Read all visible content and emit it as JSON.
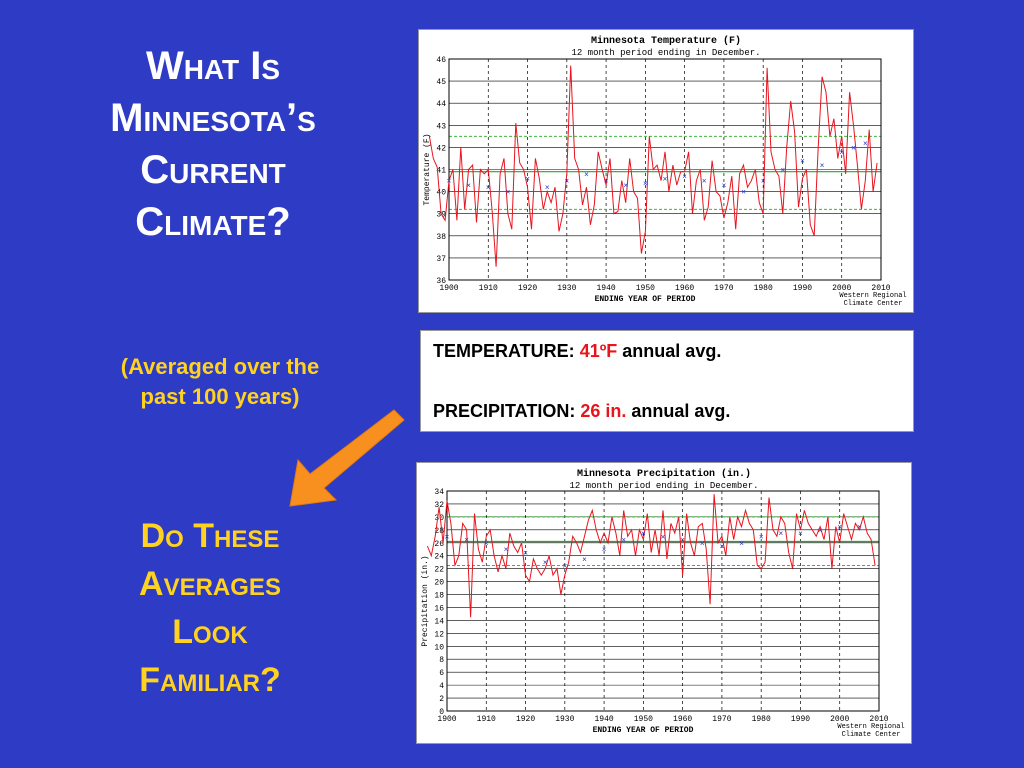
{
  "slide": {
    "title_lines": [
      "What Is",
      "Minnesota’s",
      "Current",
      "Climate?"
    ],
    "subtitle_lines": [
      "(Averaged over the",
      "past 100 years)"
    ],
    "question_lines": [
      "Do These",
      "Averages",
      "Look",
      "Familiar?"
    ],
    "arrow_icon": "orange-diagonal-arrow",
    "info": {
      "temp_label": "TEMPERATURE:",
      "temp_value": "41ºF",
      "temp_unit": "annual avg.",
      "precip_label": "PRECIPITATION:",
      "precip_value": "26 in.",
      "precip_unit": "annual avg."
    },
    "colors": {
      "background": "#2e3bc4",
      "accent_yellow": "#ffd21f",
      "value_red": "#e8141e",
      "arrow_orange": "#f7901e"
    }
  },
  "chart_data": [
    {
      "type": "line",
      "title": "Minnesota  Temperature (F)",
      "subtitle": "12 month period ending in December.",
      "xlabel": "ENDING YEAR OF PERIOD",
      "ylabel": "Temperature (F)",
      "credit_lines": [
        "Western Regional",
        "Climate Center"
      ],
      "xlim": [
        1900,
        2010
      ],
      "ylim": [
        36,
        46
      ],
      "xticks": [
        1900,
        1910,
        1920,
        1930,
        1940,
        1950,
        1960,
        1970,
        1980,
        1990,
        2000,
        2010
      ],
      "yticks": [
        36,
        37,
        38,
        39,
        40,
        41,
        42,
        43,
        44,
        45,
        46
      ],
      "grid": true,
      "reference_lines": {
        "mean": 40.9,
        "upper": 42.5,
        "lower": 39.2
      },
      "series": [
        {
          "style": "line",
          "x": [
            1895,
            1896,
            1897,
            1898,
            1899,
            1900,
            1901,
            1902,
            1903,
            1904,
            1905,
            1906,
            1907,
            1908,
            1909,
            1910,
            1911,
            1912,
            1913,
            1914,
            1915,
            1916,
            1917,
            1918,
            1919,
            1920,
            1921,
            1922,
            1923,
            1924,
            1925,
            1926,
            1927,
            1928,
            1929,
            1930,
            1931,
            1932,
            1933,
            1934,
            1935,
            1936,
            1937,
            1938,
            1939,
            1940,
            1941,
            1942,
            1943,
            1944,
            1945,
            1946,
            1947,
            1948,
            1949,
            1950,
            1951,
            1952,
            1953,
            1954,
            1955,
            1956,
            1957,
            1958,
            1959,
            1960,
            1961,
            1962,
            1963,
            1964,
            1965,
            1966,
            1967,
            1968,
            1969,
            1970,
            1971,
            1972,
            1973,
            1974,
            1975,
            1976,
            1977,
            1978,
            1979,
            1980,
            1981,
            1982,
            1983,
            1984,
            1985,
            1986,
            1987,
            1988,
            1989,
            1990,
            1991,
            1992,
            1993,
            1994,
            1995,
            1996,
            1997,
            1998,
            1999,
            2000,
            2001,
            2002,
            2003,
            2004,
            2005,
            2006,
            2007,
            2008,
            2009
          ],
          "y": [
            42.5,
            41.5,
            41.1,
            39.0,
            38.7,
            40.5,
            41.0,
            38.7,
            42.0,
            39.2,
            41.0,
            41.2,
            38.6,
            41.0,
            40.8,
            41.0,
            39.1,
            36.6,
            40.8,
            41.5,
            39.0,
            38.3,
            43.1,
            41.3,
            41.0,
            40.2,
            38.3,
            41.5,
            40.6,
            39.2,
            40.0,
            39.5,
            40.2,
            38.2,
            39.0,
            40.8,
            45.7,
            41.5,
            41.0,
            39.4,
            40.2,
            38.5,
            39.4,
            41.8,
            41.0,
            40.3,
            41.5,
            39.0,
            39.1,
            40.5,
            39.5,
            41.5,
            40.0,
            39.7,
            37.2,
            38.2,
            42.5,
            41.0,
            41.2,
            40.5,
            41.8,
            40.0,
            41.2,
            40.3,
            40.9,
            40.9,
            41.8,
            39.0,
            40.5,
            41.0,
            38.7,
            39.3,
            41.4,
            40.0,
            39.8,
            38.8,
            39.5,
            40.7,
            38.3,
            40.8,
            41.2,
            40.2,
            40.5,
            41.0,
            39.5,
            39.0,
            45.6,
            41.8,
            41.0,
            40.7,
            39.0,
            42.0,
            44.1,
            42.7,
            39.3,
            40.6,
            41.0,
            38.5,
            38.0,
            42.0,
            45.2,
            44.5,
            42.5,
            43.3,
            41.5,
            42.5,
            40.8,
            44.5,
            43.0,
            41.2,
            39.2,
            40.5,
            42.8,
            40.0,
            41.3
          ]
        },
        {
          "style": "markers",
          "x": [
            1900,
            1905,
            1910,
            1915,
            1920,
            1925,
            1930,
            1935,
            1940,
            1945,
            1950,
            1955,
            1960,
            1965,
            1970,
            1975,
            1980,
            1985,
            1990,
            1995,
            2000,
            2003,
            2006
          ],
          "y": [
            40.5,
            40.3,
            40.2,
            40.0,
            40.6,
            40.2,
            40.5,
            40.8,
            40.5,
            40.3,
            40.4,
            40.6,
            40.7,
            40.5,
            40.3,
            40.0,
            40.5,
            41.0,
            41.4,
            41.2,
            41.8,
            42.0,
            42.2
          ]
        }
      ]
    },
    {
      "type": "line",
      "title": "Minnesota  Precipitation (in.)",
      "subtitle": "12 month period ending in December.",
      "xlabel": "ENDING YEAR OF PERIOD",
      "ylabel": "Precipitation (in.)",
      "credit_lines": [
        "Western Regional",
        "Climate Center"
      ],
      "xlim": [
        1900,
        2010
      ],
      "ylim": [
        0,
        34
      ],
      "xticks": [
        1900,
        1910,
        1920,
        1930,
        1940,
        1950,
        1960,
        1970,
        1980,
        1990,
        2000,
        2010
      ],
      "yticks": [
        0,
        2,
        4,
        6,
        8,
        10,
        12,
        14,
        16,
        18,
        20,
        22,
        24,
        26,
        28,
        30,
        32,
        34
      ],
      "grid": true,
      "reference_lines": {
        "mean": 26.2,
        "upper": 30.0,
        "lower": 22.5
      },
      "series": [
        {
          "style": "line",
          "x": [
            1895,
            1896,
            1897,
            1898,
            1899,
            1900,
            1901,
            1902,
            1903,
            1904,
            1905,
            1906,
            1907,
            1908,
            1909,
            1910,
            1911,
            1912,
            1913,
            1914,
            1915,
            1916,
            1917,
            1918,
            1919,
            1920,
            1921,
            1922,
            1923,
            1924,
            1925,
            1926,
            1927,
            1928,
            1929,
            1930,
            1931,
            1932,
            1933,
            1934,
            1935,
            1936,
            1937,
            1938,
            1939,
            1940,
            1941,
            1942,
            1943,
            1944,
            1945,
            1946,
            1947,
            1948,
            1949,
            1950,
            1951,
            1952,
            1953,
            1954,
            1955,
            1956,
            1957,
            1958,
            1959,
            1960,
            1961,
            1962,
            1963,
            1964,
            1965,
            1966,
            1967,
            1968,
            1969,
            1970,
            1971,
            1972,
            1973,
            1974,
            1975,
            1976,
            1977,
            1978,
            1979,
            1980,
            1981,
            1982,
            1983,
            1984,
            1985,
            1986,
            1987,
            1988,
            1989,
            1990,
            1991,
            1992,
            1993,
            1994,
            1995,
            1996,
            1997,
            1998,
            1999,
            2000,
            2001,
            2002,
            2003,
            2004,
            2005,
            2006,
            2007,
            2008,
            2009
          ],
          "y": [
            25.5,
            24.0,
            27.0,
            31.5,
            26.0,
            32.5,
            29.0,
            22.5,
            24.0,
            29.0,
            28.0,
            14.5,
            30.5,
            25.0,
            23.0,
            27.0,
            28.0,
            24.0,
            21.5,
            24.0,
            22.0,
            27.5,
            25.5,
            24.5,
            26.0,
            21.0,
            20.0,
            23.5,
            22.0,
            21.0,
            22.0,
            24.0,
            21.0,
            22.0,
            18.0,
            21.0,
            23.0,
            27.0,
            26.0,
            24.5,
            27.0,
            29.5,
            31.0,
            28.0,
            26.0,
            27.5,
            26.0,
            30.0,
            27.5,
            24.0,
            31.0,
            27.0,
            28.0,
            24.0,
            28.0,
            26.5,
            30.5,
            24.5,
            28.0,
            24.0,
            31.0,
            23.5,
            29.0,
            27.5,
            30.0,
            21.0,
            30.5,
            26.0,
            24.0,
            28.5,
            29.0,
            25.0,
            16.5,
            33.5,
            26.0,
            27.0,
            24.0,
            30.0,
            26.5,
            30.0,
            28.5,
            31.0,
            29.0,
            28.0,
            22.5,
            22.0,
            23.0,
            33.0,
            28.0,
            27.0,
            30.0,
            29.0,
            24.5,
            22.0,
            30.5,
            28.0,
            31.0,
            29.0,
            28.0,
            27.0,
            28.5,
            26.5,
            30.0,
            22.0,
            28.5,
            26.0,
            30.5,
            28.5,
            26.5,
            29.0,
            28.0,
            30.0,
            27.5,
            26.5,
            22.5
          ]
        },
        {
          "style": "markers",
          "x": [
            1900,
            1905,
            1910,
            1915,
            1920,
            1925,
            1930,
            1935,
            1940,
            1945,
            1950,
            1955,
            1960,
            1965,
            1970,
            1975,
            1980,
            1985,
            1990,
            1995,
            2000,
            2005
          ],
          "y": [
            27.0,
            26.5,
            26.0,
            25.0,
            24.5,
            23.0,
            22.5,
            23.5,
            25.0,
            26.5,
            27.5,
            27.0,
            26.5,
            26.0,
            25.5,
            26.0,
            27.0,
            27.5,
            27.5,
            28.0,
            28.5,
            28.5
          ]
        }
      ]
    }
  ]
}
